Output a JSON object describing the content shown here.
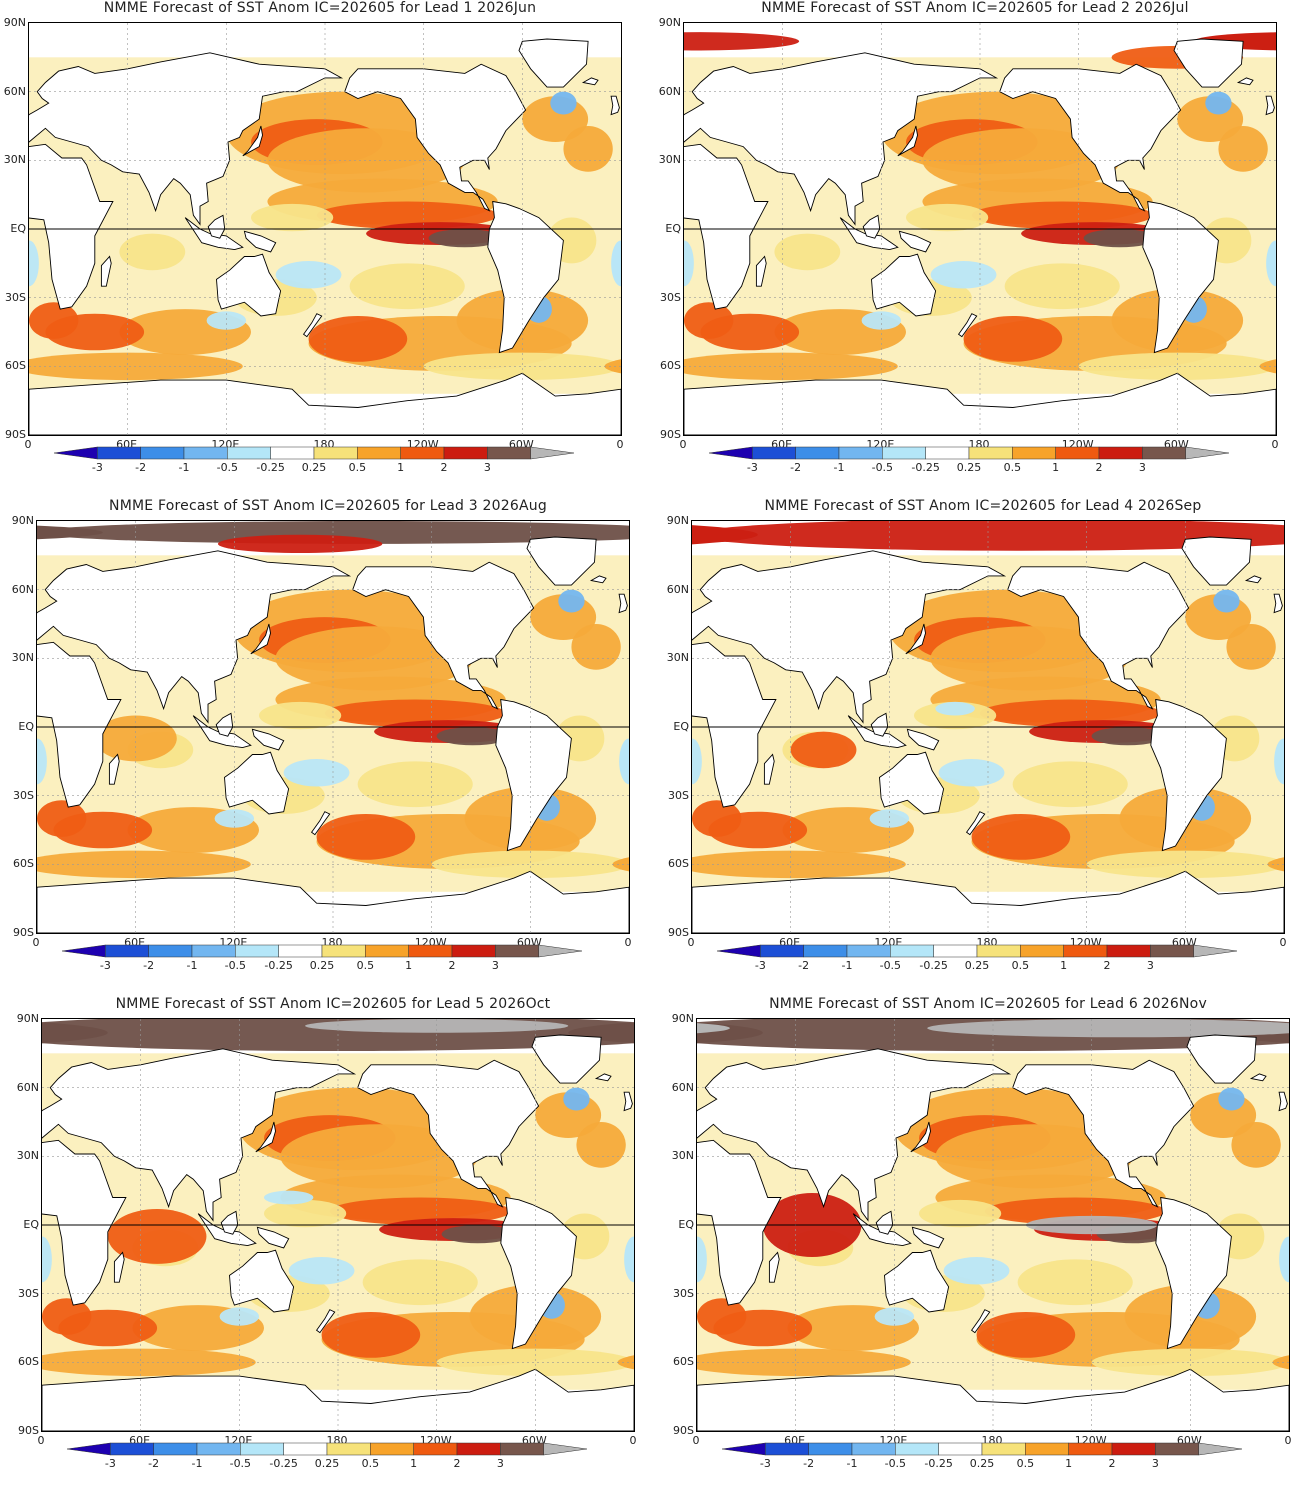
{
  "panels": [
    {
      "title": "NMME Forecast of SST Anom IC=202605 for Lead 1 2026Jun",
      "lead": 1,
      "month": "2026Jun"
    },
    {
      "title": "NMME Forecast of SST Anom IC=202605 for Lead 2 2026Jul",
      "lead": 2,
      "month": "2026Jul"
    },
    {
      "title": "NMME Forecast of SST Anom IC=202605 for Lead 3 2026Aug",
      "lead": 3,
      "month": "2026Aug"
    },
    {
      "title": "NMME Forecast of SST Anom IC=202605 for Lead 4 2026Sep",
      "lead": 4,
      "month": "2026Sep"
    },
    {
      "title": "NMME Forecast of SST Anom IC=202605 for Lead 5 2026Oct",
      "lead": 5,
      "month": "2026Oct"
    },
    {
      "title": "NMME Forecast of SST Anom IC=202605 for Lead 6 2026Nov",
      "lead": 6,
      "month": "2026Nov"
    }
  ],
  "lat_labels": [
    "90N",
    "60N",
    "30N",
    "EQ",
    "30S",
    "60S",
    "90S"
  ],
  "lon_labels": [
    "0",
    "60E",
    "120E",
    "180",
    "120W",
    "60W",
    "0"
  ],
  "colorbar": {
    "labels": [
      "-3",
      "-2",
      "-1",
      "-0.5",
      "-0.25",
      "0.25",
      "0.5",
      "1",
      "2",
      "3"
    ],
    "colors": [
      "#1d00b0",
      "#1c4fd6",
      "#3d8ee8",
      "#72b6f0",
      "#b4e6f8",
      "#ffffff",
      "#f6e27a",
      "#f7a32a",
      "#ef5a10",
      "#cc1c10",
      "#77564c",
      "#b7b7b7"
    ]
  },
  "anomaly_colors": {
    "warm_025": "#f8e48a",
    "warm_05": "#f6aa3a",
    "warm_1": "#ef5d14",
    "warm_2": "#cc1f12",
    "warm_3": "#6e5048",
    "warm_gt3": "#b5b5b5",
    "cool_025": "#b9e6f7",
    "cool_05": "#74b6ef",
    "cool_1": "#3a86e2"
  }
}
